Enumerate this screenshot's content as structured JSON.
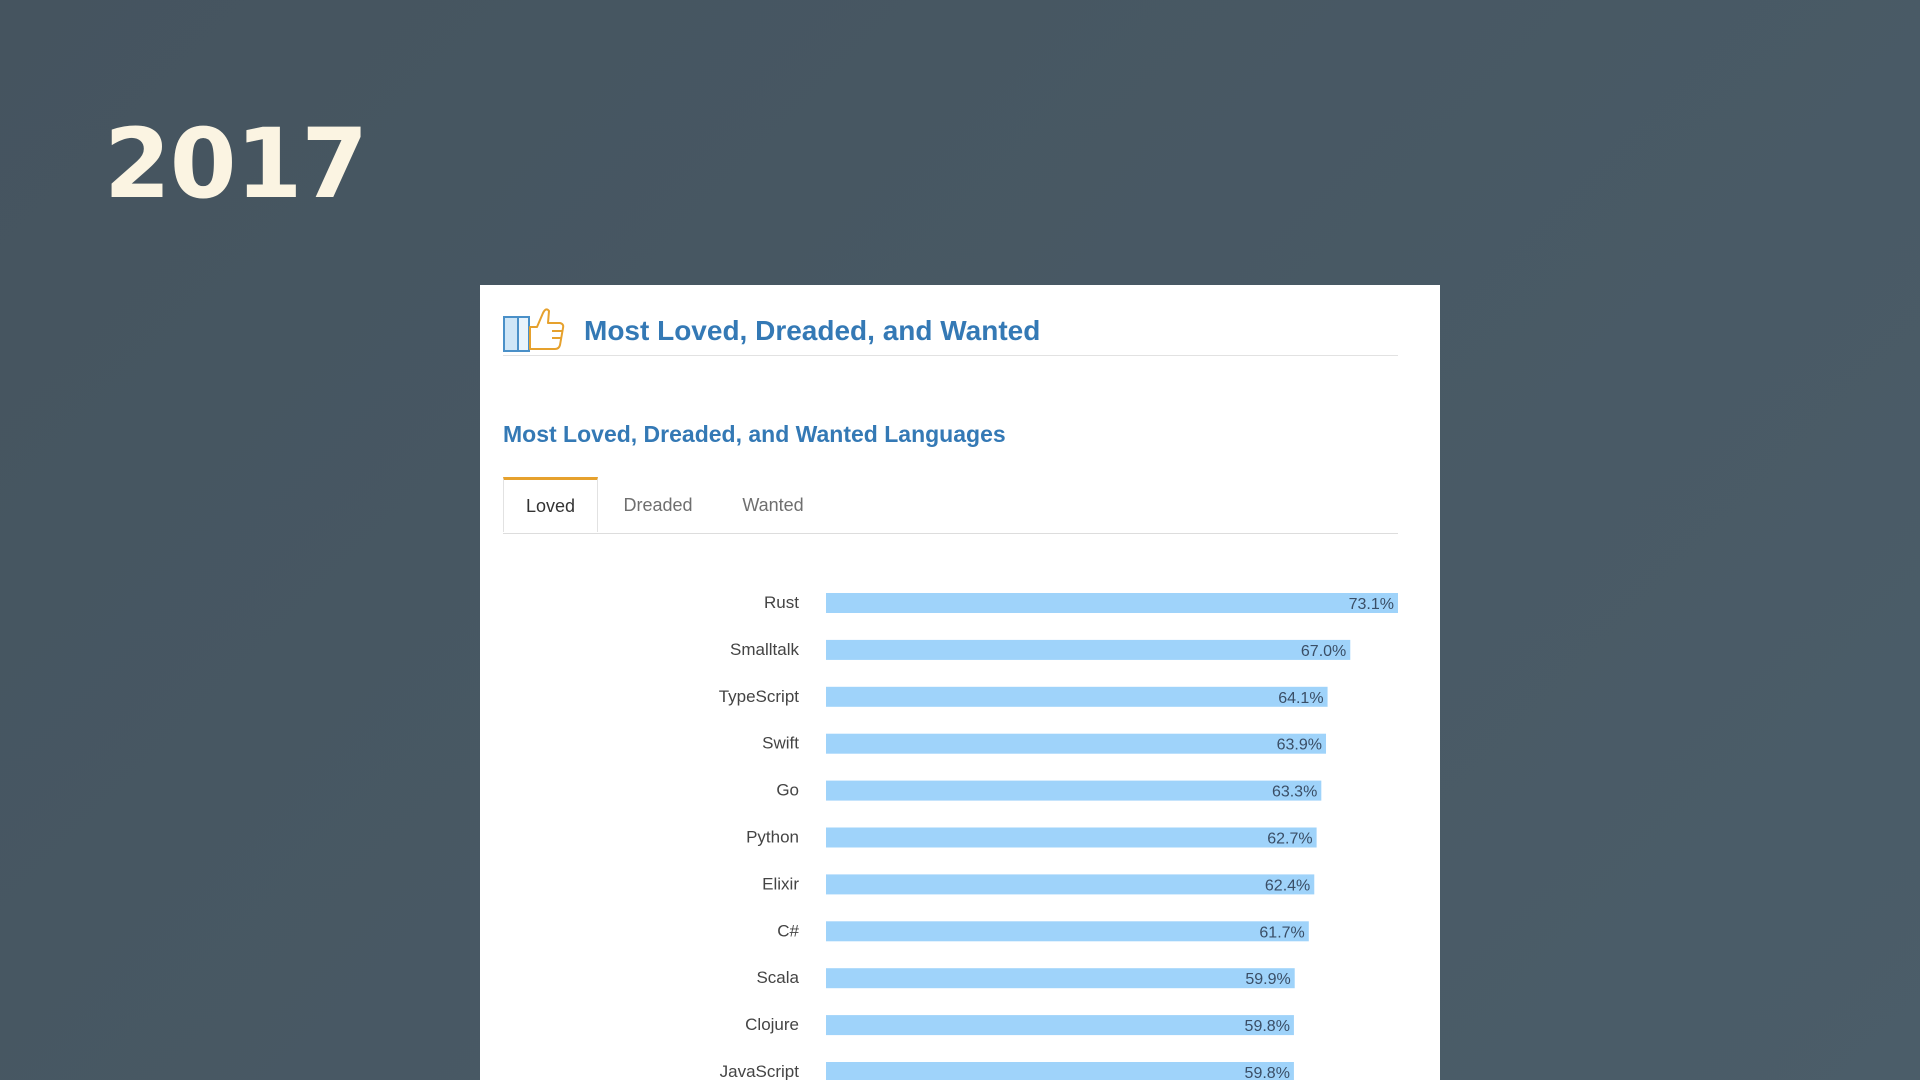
{
  "slide": {
    "year": "2017"
  },
  "panel": {
    "header_title": "Most Loved, Dreaded, and Wanted",
    "subtitle": "Most Loved, Dreaded, and Wanted Languages",
    "tabs": [
      {
        "label": "Loved",
        "active": true
      },
      {
        "label": "Dreaded",
        "active": false
      },
      {
        "label": "Wanted",
        "active": false
      }
    ],
    "header_icon": "thumbs-up-icon"
  },
  "colors": {
    "bar": "#9fd3fa",
    "accent_title": "#3479b5",
    "active_tab": "#e6a12d"
  },
  "chart_data": {
    "type": "bar",
    "orientation": "horizontal",
    "categories": [
      "Rust",
      "Smalltalk",
      "TypeScript",
      "Swift",
      "Go",
      "Python",
      "Elixir",
      "C#",
      "Scala",
      "Clojure",
      "JavaScript"
    ],
    "values": [
      73.1,
      67.0,
      64.1,
      63.9,
      63.3,
      62.7,
      62.4,
      61.7,
      59.9,
      59.8,
      59.8
    ],
    "labels": [
      "73.1%",
      "67.0%",
      "64.1%",
      "63.9%",
      "63.3%",
      "62.7%",
      "62.4%",
      "61.7%",
      "59.9%",
      "59.8%",
      "59.8%"
    ],
    "xlim": [
      0,
      73.1
    ],
    "title": "",
    "xlabel": "",
    "ylabel": ""
  }
}
